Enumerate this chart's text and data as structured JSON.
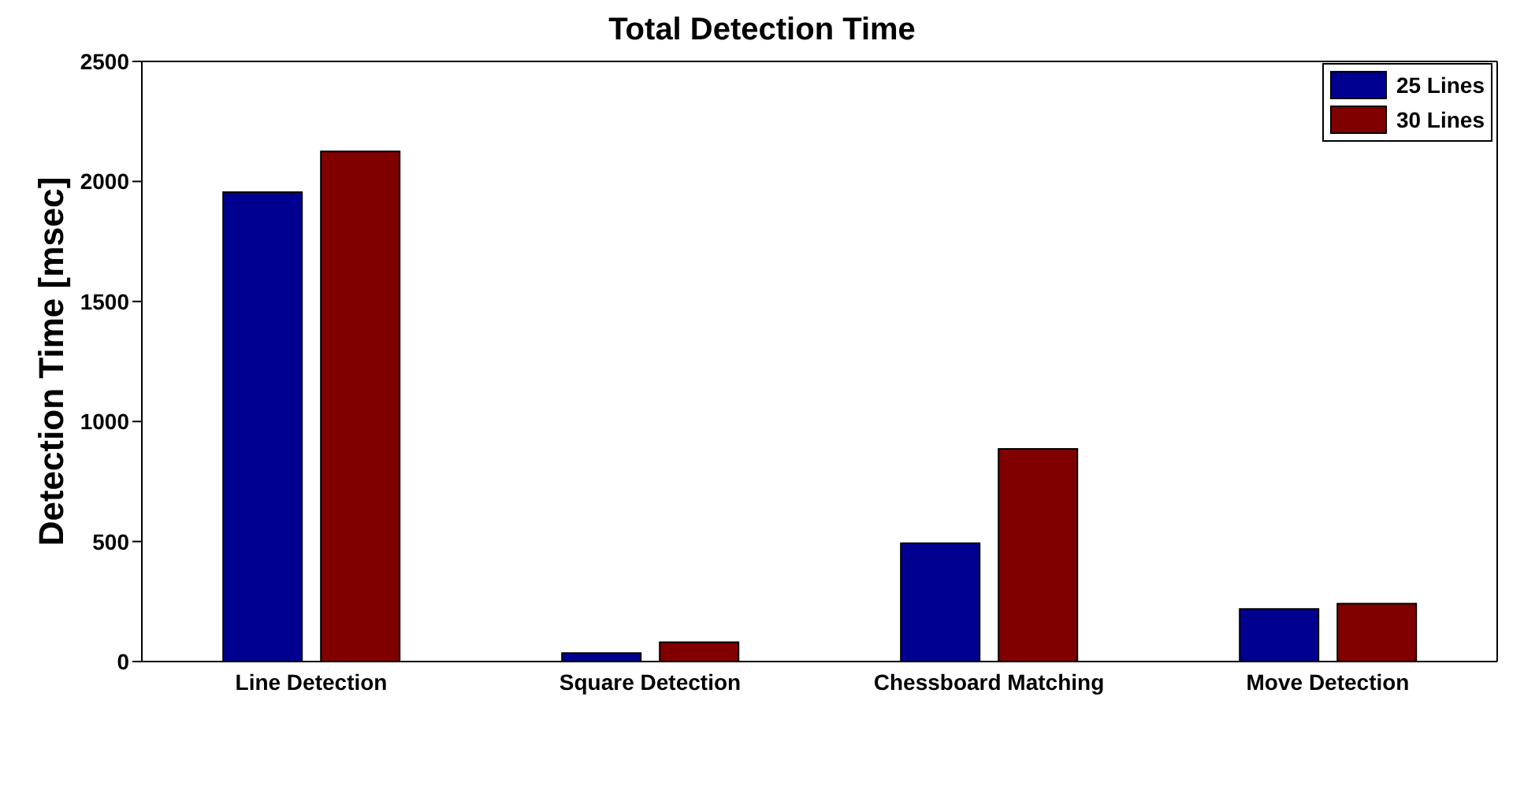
{
  "chart_data": {
    "type": "bar",
    "title": "Total Detection Time",
    "ylabel": "Detection Time [msec]",
    "categories": [
      "Line Detection",
      "Square Detection",
      "Chessboard Matching",
      "Move Detection"
    ],
    "series": [
      {
        "name": "25 Lines",
        "color": "#000090",
        "values": [
          1955,
          35,
          493,
          219
        ]
      },
      {
        "name": "30 Lines",
        "color": "#800000",
        "values": [
          2125,
          80,
          886,
          241
        ]
      }
    ],
    "ylim": [
      0,
      2500
    ],
    "yticks": [
      0,
      500,
      1000,
      1500,
      2000,
      2500
    ],
    "legend": "top right"
  }
}
